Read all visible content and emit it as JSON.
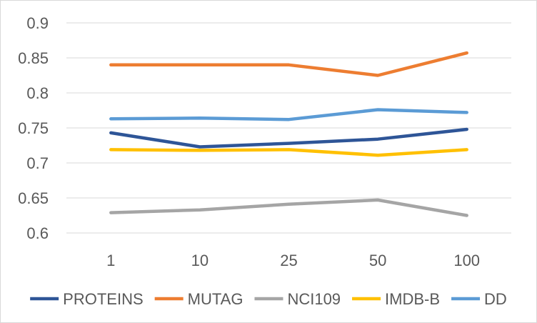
{
  "chart_data": {
    "type": "line",
    "title": "",
    "xlabel": "",
    "ylabel": "",
    "categories": [
      "1",
      "10",
      "25",
      "50",
      "100"
    ],
    "ylim": [
      0.6,
      0.9
    ],
    "yticks": [
      "0.6",
      "0.65",
      "0.7",
      "0.75",
      "0.8",
      "0.85",
      "0.9"
    ],
    "grid": true,
    "legend_position": "bottom",
    "series": [
      {
        "name": "PROTEINS",
        "color": "#2E5597",
        "values": [
          0.743,
          0.723,
          0.728,
          0.734,
          0.748
        ]
      },
      {
        "name": "MUTAG",
        "color": "#ED7D31",
        "values": [
          0.84,
          0.84,
          0.84,
          0.825,
          0.857
        ]
      },
      {
        "name": "NCI109",
        "color": "#A5A5A5",
        "values": [
          0.629,
          0.633,
          0.641,
          0.647,
          0.625
        ]
      },
      {
        "name": "IMDB-B",
        "color": "#FFC000",
        "values": [
          0.719,
          0.718,
          0.719,
          0.711,
          0.719
        ]
      },
      {
        "name": "DD",
        "color": "#5B9BD5",
        "values": [
          0.763,
          0.764,
          0.762,
          0.776,
          0.772
        ]
      }
    ]
  }
}
